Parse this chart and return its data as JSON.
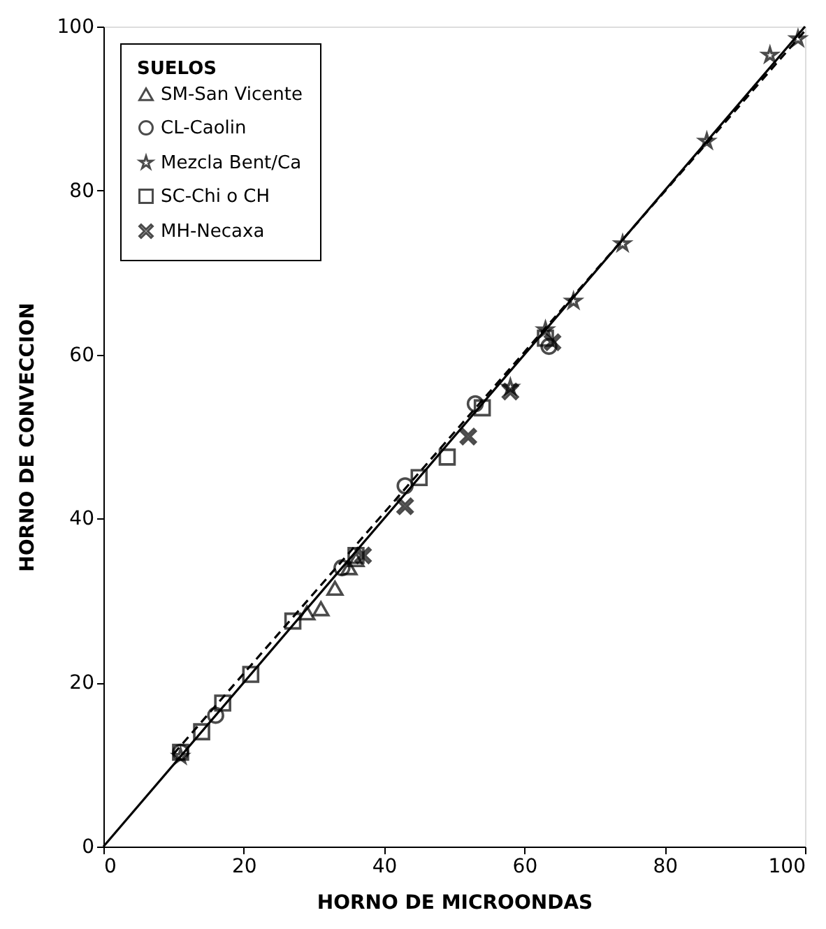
{
  "chart_data": {
    "type": "scatter",
    "xlabel": "HORNO DE MICROONDAS",
    "ylabel": "HORNO DE CONVECCION",
    "legend_title": "SUELOS",
    "legend": "top left",
    "grid": false,
    "xlim": [
      0,
      100
    ],
    "ylim": [
      0,
      100
    ],
    "xticks": [
      0,
      20,
      40,
      60,
      80,
      100
    ],
    "yticks": [
      0,
      20,
      40,
      60,
      80,
      100
    ],
    "series": [
      {
        "name": "SM-San Vicente",
        "color": "#000000",
        "marker": "triangle",
        "x": [
          29,
          31,
          33,
          35,
          36
        ],
        "values": [
          28.5,
          29,
          31.5,
          34,
          35
        ]
      },
      {
        "name": "CL-Caolin",
        "color": "#000000",
        "marker": "circle",
        "x": [
          11,
          16,
          34,
          43,
          53,
          63.5
        ],
        "values": [
          11.5,
          16,
          34,
          44,
          54,
          61
        ]
      },
      {
        "name": "Mezcla Bent/Ca",
        "color": "#000000",
        "marker": "star",
        "x": [
          11,
          58,
          63,
          67,
          74,
          86,
          95,
          99
        ],
        "values": [
          11,
          56,
          63,
          66.5,
          73.5,
          86,
          96.5,
          98.5
        ]
      },
      {
        "name": "SC-Chi o CH",
        "color": "#000000",
        "marker": "square",
        "x": [
          11,
          14,
          17,
          21,
          27,
          36,
          45,
          49,
          54,
          63
        ],
        "values": [
          11.5,
          14,
          17.5,
          21,
          27.5,
          35.5,
          45,
          47.5,
          53.5,
          62
        ]
      },
      {
        "name": "MH-Necaxa",
        "color": "#000000",
        "marker": "cross",
        "x": [
          37,
          43,
          52,
          58,
          64
        ],
        "values": [
          35.5,
          41.5,
          50,
          55.5,
          61.5
        ]
      },
      {
        "type": "line",
        "color": "#000000",
        "line_style": "solid",
        "marker": "none",
        "x": [
          0,
          100
        ],
        "values": [
          0,
          100
        ]
      },
      {
        "type": "line",
        "color": "#000000",
        "line_style": "dashed",
        "marker": "none",
        "x": [
          10,
          100
        ],
        "values": [
          11.3,
          99.5
        ]
      }
    ]
  }
}
